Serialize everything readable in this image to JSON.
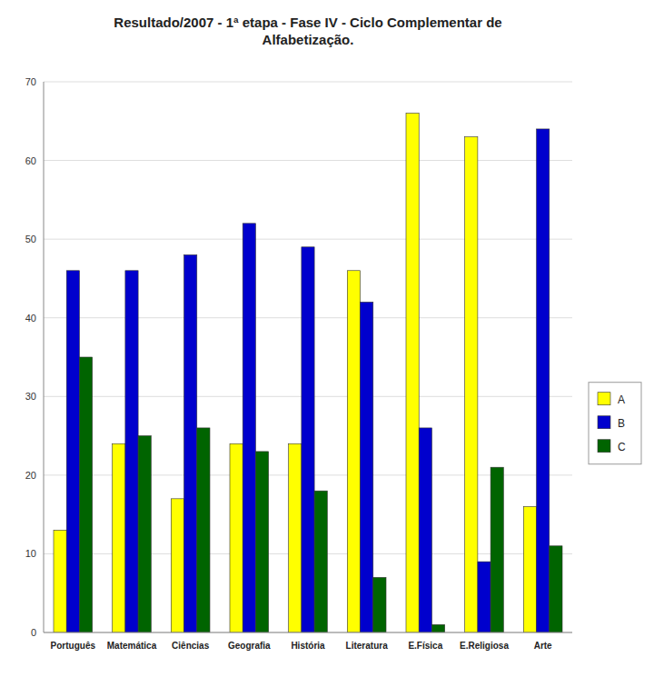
{
  "chart_data": {
    "type": "bar",
    "title": "Resultado/2007 - 1ª etapa - Fase IV - Ciclo Complementar de\nAlfabetização.",
    "categories": [
      "Português",
      "Matemática",
      "Ciências",
      "Geografia",
      "História",
      "Literatura",
      "E.Física",
      "E.Religiosa",
      "Arte"
    ],
    "series": [
      {
        "name": "A",
        "color": "#FFFF00",
        "values": [
          13,
          24,
          17,
          24,
          24,
          46,
          66,
          63,
          16
        ]
      },
      {
        "name": "B",
        "color": "#0000CD",
        "values": [
          46,
          46,
          48,
          52,
          49,
          42,
          26,
          9,
          64
        ]
      },
      {
        "name": "C",
        "color": "#006400",
        "values": [
          35,
          25,
          26,
          23,
          18,
          7,
          1,
          21,
          11
        ]
      }
    ],
    "ylim": [
      0,
      70
    ],
    "yticks": [
      0,
      10,
      20,
      30,
      40,
      50,
      60,
      70
    ],
    "grid": true,
    "legend": "right"
  }
}
